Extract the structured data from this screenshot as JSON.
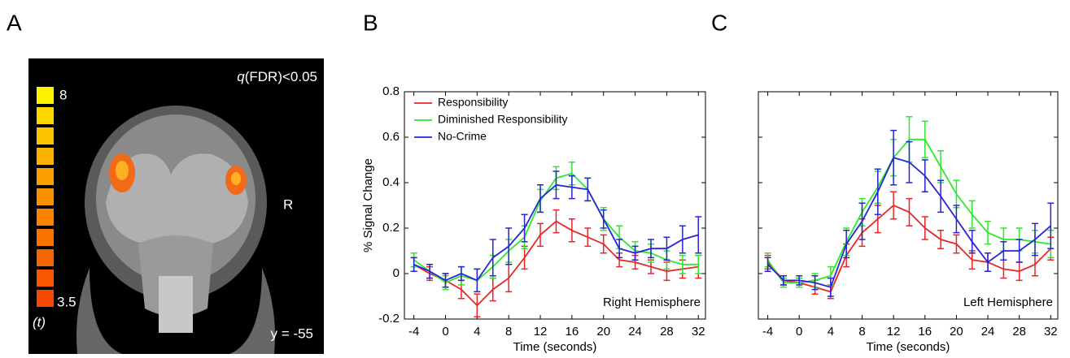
{
  "panel_labels": [
    "A",
    "B",
    "C"
  ],
  "brain_panel": {
    "colorbar_labels": [
      "8",
      "3.5"
    ],
    "colorbar_unit": "(t)",
    "threshold_symbol": "q",
    "threshold": "(FDR)<0.05",
    "side_label": "R",
    "slice_label": "y = -55"
  },
  "chart_data": [
    {
      "type": "line",
      "ylabel": "% Signal Change",
      "xlabel": "Time (seconds)",
      "annotation": "Right Hemisphere",
      "x": [
        -4,
        -2,
        0,
        2,
        4,
        6,
        8,
        10,
        12,
        14,
        16,
        18,
        20,
        22,
        24,
        26,
        28,
        30,
        32
      ],
      "xlim": [
        -5.2,
        32.9
      ],
      "xticks": [
        -4,
        0,
        4,
        8,
        12,
        16,
        20,
        24,
        28,
        32
      ],
      "ylim": [
        -0.2,
        0.8
      ],
      "yticks": [
        -0.2,
        0,
        0.2,
        0.4,
        0.6,
        0.8
      ],
      "show_ytick_labels": true,
      "legend": "upper left",
      "series": [
        {
          "name": "Responsibility",
          "color": "#e8262a",
          "values": [
            0.04,
            0.0,
            -0.03,
            -0.07,
            -0.14,
            -0.07,
            -0.02,
            0.07,
            0.17,
            0.23,
            0.19,
            0.16,
            0.13,
            0.06,
            0.05,
            0.03,
            0.01,
            0.02,
            0.03
          ],
          "errors": [
            0.03,
            0.03,
            0.03,
            0.04,
            0.05,
            0.05,
            0.06,
            0.05,
            0.05,
            0.05,
            0.05,
            0.04,
            0.04,
            0.03,
            0.03,
            0.03,
            0.04,
            0.04,
            0.05
          ]
        },
        {
          "name": "Diminished Responsibility",
          "color": "#2ee82e",
          "values": [
            0.06,
            0.01,
            -0.04,
            -0.01,
            -0.03,
            0.03,
            0.1,
            0.16,
            0.32,
            0.42,
            0.44,
            0.37,
            0.24,
            0.16,
            0.1,
            0.09,
            0.06,
            0.04,
            0.04
          ],
          "errors": [
            0.03,
            0.03,
            0.03,
            0.04,
            0.05,
            0.05,
            0.05,
            0.05,
            0.05,
            0.05,
            0.05,
            0.05,
            0.05,
            0.05,
            0.04,
            0.04,
            0.04,
            0.04,
            0.04
          ]
        },
        {
          "name": "No-Crime",
          "color": "#2626d6",
          "values": [
            0.04,
            0.01,
            -0.03,
            0.0,
            -0.03,
            0.07,
            0.12,
            0.2,
            0.33,
            0.39,
            0.38,
            0.37,
            0.24,
            0.11,
            0.09,
            0.11,
            0.11,
            0.15,
            0.17
          ],
          "errors": [
            0.03,
            0.03,
            0.03,
            0.03,
            0.05,
            0.08,
            0.08,
            0.06,
            0.06,
            0.06,
            0.05,
            0.05,
            0.04,
            0.04,
            0.03,
            0.04,
            0.05,
            0.06,
            0.08
          ]
        }
      ]
    },
    {
      "type": "line",
      "xlabel": "Time (seconds)",
      "annotation": "Left Hemisphere",
      "x": [
        -4,
        -2,
        0,
        2,
        4,
        6,
        8,
        10,
        12,
        14,
        16,
        18,
        20,
        22,
        24,
        26,
        28,
        30,
        32
      ],
      "xlim": [
        -5.2,
        32.9
      ],
      "xticks": [
        -4,
        0,
        4,
        8,
        12,
        16,
        20,
        24,
        28,
        32
      ],
      "ylim": [
        -0.2,
        0.8
      ],
      "yticks": [
        -0.2,
        0,
        0.2,
        0.4,
        0.6,
        0.8
      ],
      "show_ytick_labels": false,
      "series": [
        {
          "color": "#e8262a",
          "values": [
            0.05,
            -0.03,
            -0.04,
            -0.06,
            -0.08,
            0.08,
            0.18,
            0.24,
            0.3,
            0.27,
            0.2,
            0.15,
            0.13,
            0.06,
            0.05,
            0.02,
            0.01,
            0.04,
            0.11
          ],
          "errors": [
            0.03,
            0.02,
            0.02,
            0.03,
            0.03,
            0.05,
            0.06,
            0.06,
            0.06,
            0.06,
            0.05,
            0.04,
            0.04,
            0.04,
            0.04,
            0.04,
            0.04,
            0.05,
            0.05
          ]
        },
        {
          "color": "#2ee82e",
          "values": [
            0.06,
            -0.04,
            -0.04,
            -0.03,
            -0.01,
            0.14,
            0.27,
            0.38,
            0.51,
            0.59,
            0.59,
            0.47,
            0.35,
            0.26,
            0.18,
            0.15,
            0.15,
            0.14,
            0.13
          ],
          "errors": [
            0.03,
            0.02,
            0.02,
            0.03,
            0.04,
            0.06,
            0.06,
            0.07,
            0.08,
            0.1,
            0.08,
            0.07,
            0.06,
            0.06,
            0.05,
            0.05,
            0.05,
            0.05,
            0.06
          ]
        },
        {
          "color": "#2626d6",
          "values": [
            0.04,
            -0.03,
            -0.03,
            -0.04,
            -0.06,
            0.13,
            0.23,
            0.36,
            0.51,
            0.49,
            0.43,
            0.34,
            0.24,
            0.14,
            0.05,
            0.1,
            0.1,
            0.15,
            0.21
          ],
          "errors": [
            0.03,
            0.02,
            0.02,
            0.03,
            0.04,
            0.06,
            0.08,
            0.1,
            0.12,
            0.09,
            0.07,
            0.07,
            0.06,
            0.05,
            0.04,
            0.04,
            0.05,
            0.07,
            0.1
          ]
        }
      ]
    }
  ]
}
